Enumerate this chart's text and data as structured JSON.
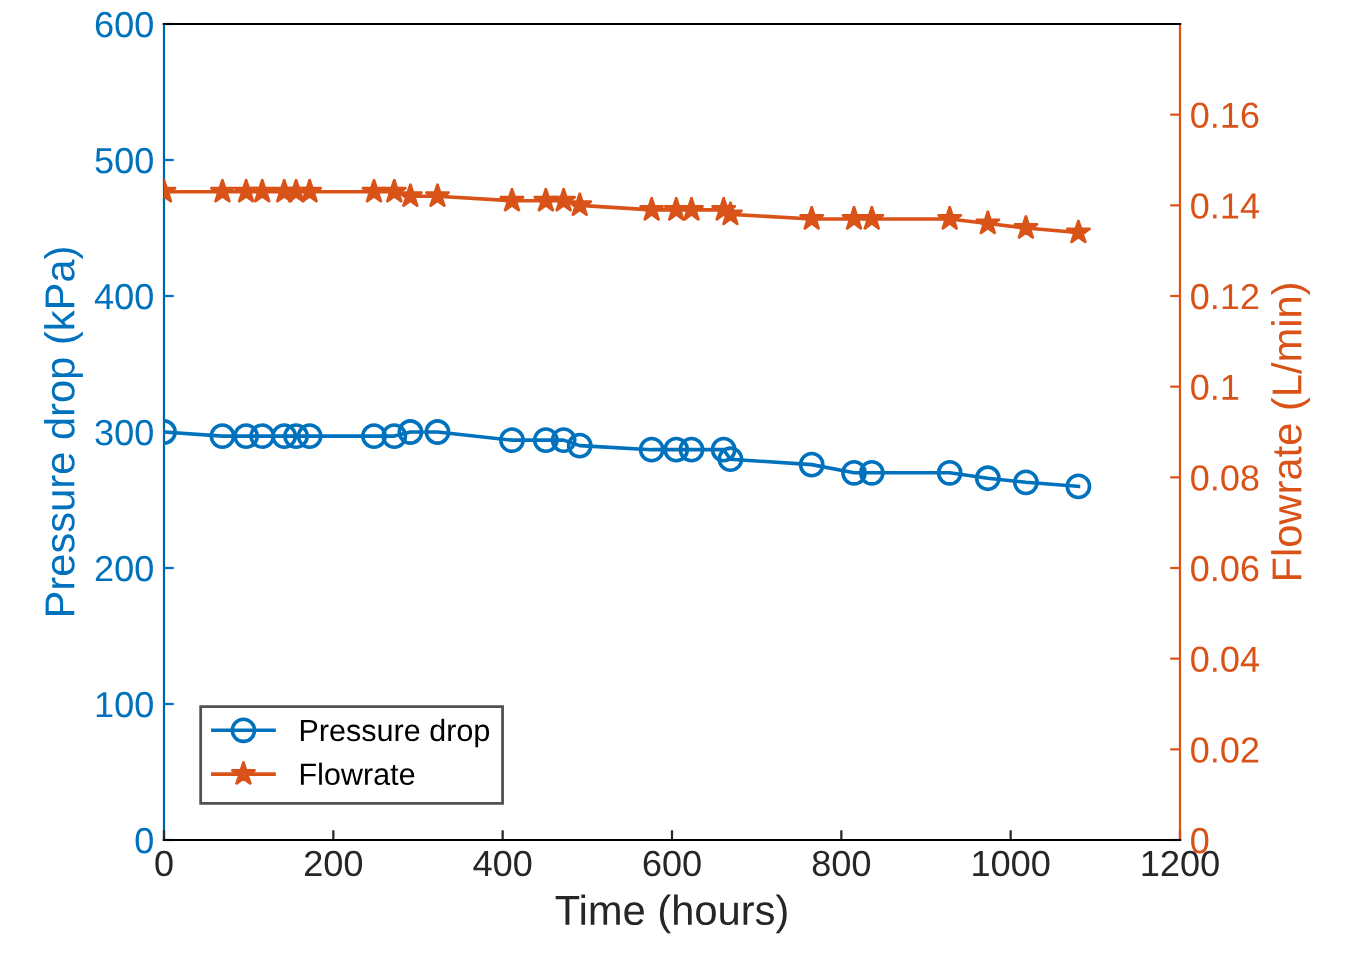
{
  "chart_data": {
    "type": "line",
    "xlabel": "Time (hours)",
    "ylabel": "Pressure drop (kPa)",
    "y2label": "Flowrate (L/min)",
    "x": [
      0,
      69,
      97,
      116,
      142,
      156,
      172,
      248,
      272,
      291,
      323,
      411,
      451,
      472,
      491,
      576,
      605,
      623,
      661,
      669,
      765,
      815,
      836,
      928,
      973,
      1018,
      1080
    ],
    "series": [
      {
        "name": "Pressure drop",
        "color": "#0072bd",
        "marker": "circle",
        "values": [
          300,
          297,
          297,
          297,
          297,
          297,
          297,
          297,
          297,
          300,
          300,
          294,
          294,
          294,
          290,
          287,
          287,
          287,
          287,
          280,
          276,
          270,
          270,
          270,
          266,
          263,
          260
        ]
      },
      {
        "name": "Flowrate",
        "color": "#d95319",
        "marker": "star",
        "axis": "y2",
        "values": [
          0.143,
          0.143,
          0.143,
          0.143,
          0.143,
          0.143,
          0.143,
          0.143,
          0.143,
          0.142,
          0.142,
          0.141,
          0.141,
          0.141,
          0.14,
          0.139,
          0.139,
          0.139,
          0.139,
          0.138,
          0.137,
          0.137,
          0.137,
          0.137,
          0.136,
          0.135,
          0.134
        ]
      }
    ],
    "xlim": [
      0,
      1200
    ],
    "xticks": [
      0,
      200,
      400,
      600,
      800,
      1000,
      1200
    ],
    "ylim": [
      0,
      600
    ],
    "yticks": [
      0,
      100,
      200,
      300,
      400,
      500,
      600
    ],
    "y2lim": [
      0,
      0.18
    ],
    "y2ticks": [
      {
        "value": 0,
        "label": "0"
      },
      {
        "value": 0.02,
        "label": "0.02"
      },
      {
        "value": 0.04,
        "label": "0.04"
      },
      {
        "value": 0.06,
        "label": "0.06"
      },
      {
        "value": 0.08,
        "label": "0.08"
      },
      {
        "value": 0.1,
        "label": "0.1"
      },
      {
        "value": 0.12,
        "label": "0.12"
      },
      {
        "value": 0.14,
        "label": "0.14"
      },
      {
        "value": 0.16,
        "label": "0.16"
      }
    ],
    "legend": "bottom left",
    "grid": false,
    "line_style": "solid"
  }
}
